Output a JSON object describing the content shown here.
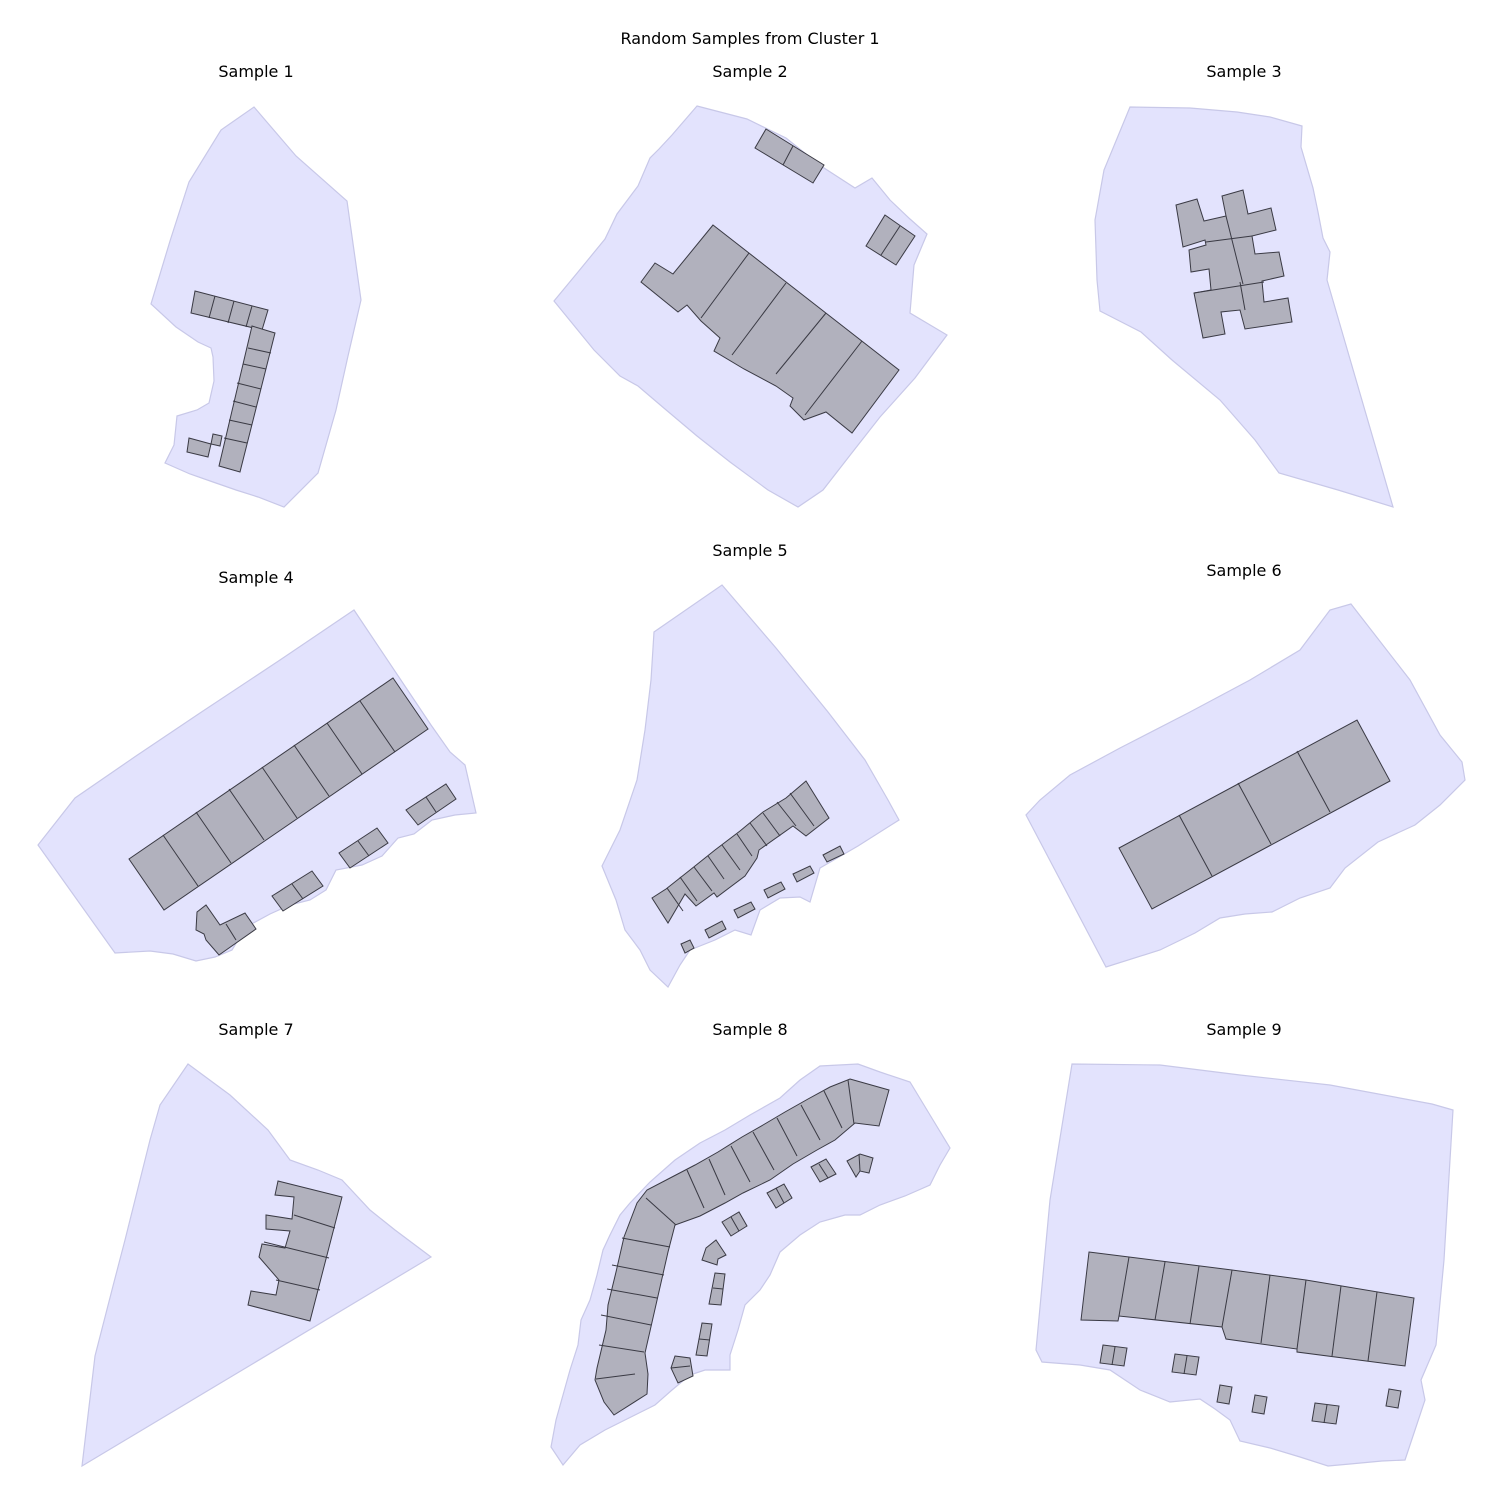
{
  "figure": {
    "title": "Random Samples from Cluster 1",
    "colors": {
      "parcel_fill": "#e3e3fd",
      "parcel_edge": "#c8c8e8",
      "building_fill": "#b1b1bd",
      "building_edge": "#3a3a44"
    }
  },
  "panels": [
    {
      "title": "Sample 1"
    },
    {
      "title": "Sample 2"
    },
    {
      "title": "Sample 3"
    },
    {
      "title": "Sample 4"
    },
    {
      "title": "Sample 5"
    },
    {
      "title": "Sample 6"
    },
    {
      "title": "Sample 7"
    },
    {
      "title": "Sample 8"
    },
    {
      "title": "Sample 9"
    }
  ]
}
